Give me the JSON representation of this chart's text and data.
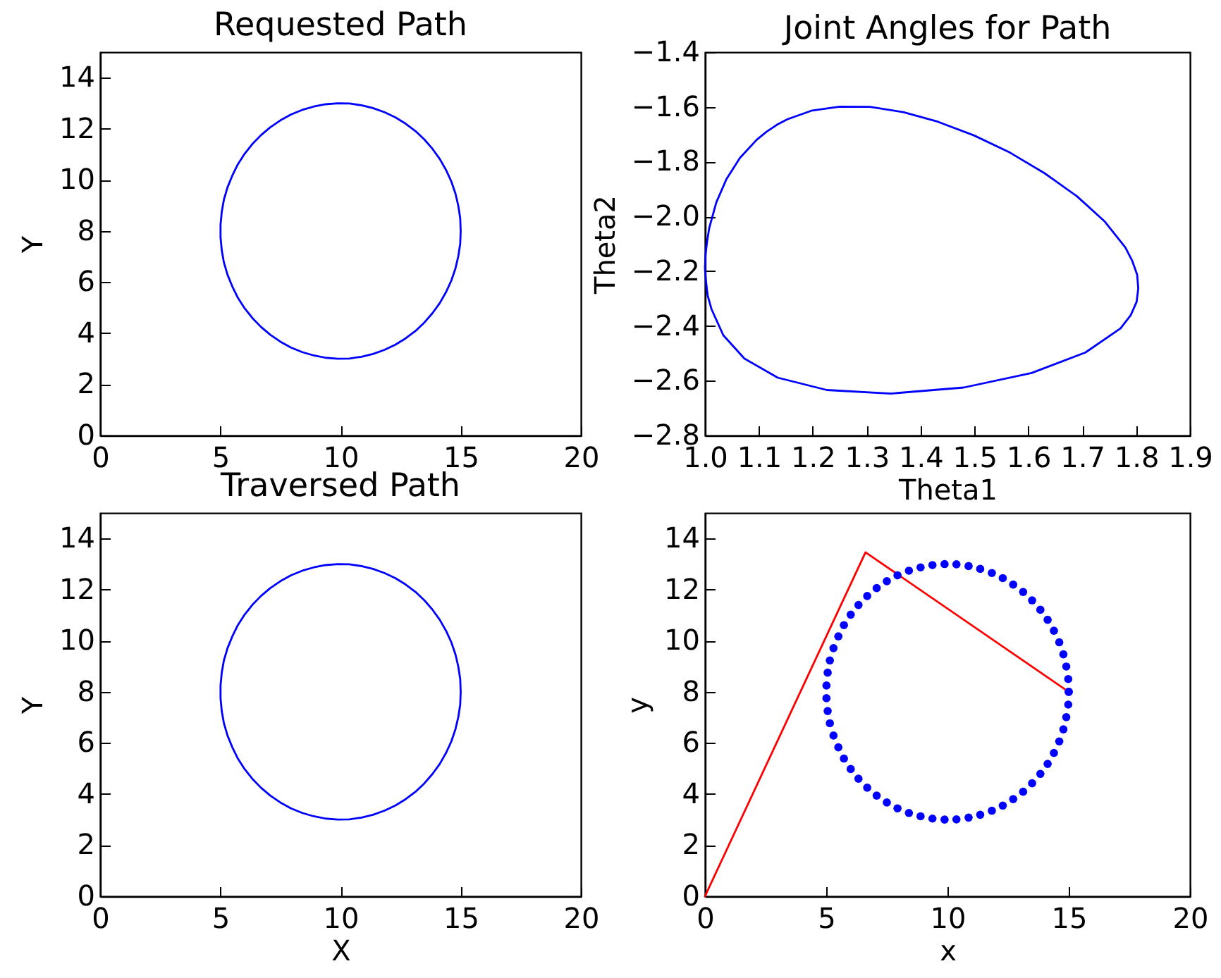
{
  "chart_data": [
    {
      "type": "line",
      "title": "Requested Path",
      "ylabel": "Y",
      "x": [
        15,
        14.98,
        14.9,
        14.78,
        14.61,
        14.39,
        14.13,
        13.83,
        13.49,
        13.12,
        12.71,
        12.28,
        11.83,
        11.35,
        10.87,
        10.37,
        9.88,
        9.38,
        8.89,
        8.41,
        7.94,
        7.5,
        7.08,
        6.69,
        6.33,
        6.01,
        5.73,
        5.5,
        5.3,
        5.15,
        5.06,
        5.01,
        5.01,
        5.06,
        5.15,
        5.3,
        5.5,
        5.73,
        6.01,
        6.33,
        6.69,
        7.08,
        7.5,
        7.94,
        8.41,
        8.89,
        9.38,
        9.88,
        10.37,
        10.87,
        11.35,
        11.83,
        12.28,
        12.71,
        13.12,
        13.49,
        13.83,
        14.13,
        14.39,
        14.61,
        14.78,
        14.9,
        14.98,
        15,
        14.98
      ],
      "values": [
        8,
        8.5,
        8.99,
        9.47,
        9.94,
        10.39,
        10.82,
        11.21,
        11.58,
        11.91,
        12.2,
        12.45,
        12.65,
        12.81,
        12.92,
        12.99,
        13,
        12.96,
        12.87,
        12.74,
        12.56,
        12.33,
        12.06,
        11.75,
        11.4,
        11.02,
        10.61,
        10.17,
        9.71,
        9.23,
        8.75,
        8.25,
        7.75,
        7.25,
        6.77,
        6.29,
        5.83,
        5.39,
        4.98,
        4.6,
        4.25,
        3.94,
        3.67,
        3.44,
        3.26,
        3.13,
        3.04,
        3,
        3.01,
        3.08,
        3.19,
        3.35,
        3.55,
        3.8,
        4.09,
        4.42,
        4.79,
        5.18,
        5.61,
        6.06,
        6.53,
        7.01,
        7.5,
        8,
        8.5
      ],
      "color": "#0000ff",
      "xlim": [
        0,
        20
      ],
      "xticks": [
        0,
        5,
        10,
        15,
        20
      ],
      "ylim": [
        0,
        15
      ],
      "yticks": [
        0,
        2,
        4,
        6,
        8,
        10,
        12,
        14
      ]
    },
    {
      "type": "line",
      "title": "Joint Angles for Path",
      "xlabel": "Theta1",
      "ylabel": "Theta2",
      "x": [
        1.114,
        1.133,
        1.153,
        1.199,
        1.25,
        1.306,
        1.368,
        1.432,
        1.499,
        1.566,
        1.63,
        1.69,
        1.741,
        1.78,
        1.793,
        1.802,
        1.804,
        1.801,
        1.79,
        1.771,
        1.706,
        1.606,
        1.48,
        1.345,
        1.226,
        1.135,
        1.073,
        1.034,
        1.012,
        1.005,
        1.002,
        1,
        1.001,
        1.004,
        1.008,
        1.021,
        1.04,
        1.065,
        1.096,
        1.114,
        1.133
      ],
      "values": [
        -1.691,
        -1.666,
        -1.645,
        -1.613,
        -1.599,
        -1.6,
        -1.619,
        -1.654,
        -1.704,
        -1.767,
        -1.842,
        -1.926,
        -2.017,
        -2.113,
        -2.163,
        -2.213,
        -2.263,
        -2.312,
        -2.361,
        -2.409,
        -2.497,
        -2.572,
        -2.625,
        -2.647,
        -2.634,
        -2.589,
        -2.519,
        -2.434,
        -2.338,
        -2.289,
        -2.239,
        -2.189,
        -2.14,
        -2.09,
        -2.042,
        -1.949,
        -1.863,
        -1.786,
        -1.72,
        -1.691,
        -1.666
      ],
      "color": "#0000ff",
      "xlim": [
        1,
        1.9
      ],
      "xticks": [
        {
          "value": 1,
          "label": "1.0"
        },
        1.1,
        1.2,
        1.3,
        1.4,
        1.5,
        1.6,
        1.7,
        1.8,
        1.9
      ],
      "ylim": [
        -2.8,
        -1.4
      ],
      "yticks": [
        {
          "value": -2.8,
          "label": "−2.8"
        },
        {
          "value": -2.6,
          "label": "−2.6"
        },
        {
          "value": -2.4,
          "label": "−2.4"
        },
        {
          "value": -2.2,
          "label": "−2.2"
        },
        {
          "value": -2,
          "label": "−2.0"
        },
        {
          "value": -1.8,
          "label": "−1.8"
        },
        {
          "value": -1.6,
          "label": "−1.6"
        },
        {
          "value": -1.4,
          "label": "−1.4"
        }
      ]
    },
    {
      "type": "line",
      "title": "Traversed Path",
      "xlabel": "X",
      "ylabel": "Y",
      "x": [
        15,
        14.98,
        14.9,
        14.78,
        14.61,
        14.39,
        14.13,
        13.83,
        13.49,
        13.12,
        12.71,
        12.28,
        11.83,
        11.35,
        10.87,
        10.37,
        9.88,
        9.38,
        8.89,
        8.41,
        7.94,
        7.5,
        7.08,
        6.69,
        6.33,
        6.01,
        5.73,
        5.5,
        5.3,
        5.15,
        5.06,
        5.01,
        5.01,
        5.06,
        5.15,
        5.3,
        5.5,
        5.73,
        6.01,
        6.33,
        6.69,
        7.08,
        7.5,
        7.94,
        8.41,
        8.89,
        9.38,
        9.88,
        10.37,
        10.87,
        11.35,
        11.83,
        12.28,
        12.71,
        13.12,
        13.49,
        13.83,
        14.13,
        14.39,
        14.61,
        14.78,
        14.9,
        14.98,
        15,
        14.98
      ],
      "values": [
        8,
        8.5,
        8.99,
        9.47,
        9.94,
        10.39,
        10.82,
        11.21,
        11.58,
        11.91,
        12.2,
        12.45,
        12.65,
        12.81,
        12.92,
        12.99,
        13,
        12.96,
        12.87,
        12.74,
        12.56,
        12.33,
        12.06,
        11.75,
        11.4,
        11.02,
        10.61,
        10.17,
        9.71,
        9.23,
        8.75,
        8.25,
        7.75,
        7.25,
        6.77,
        6.29,
        5.83,
        5.39,
        4.98,
        4.6,
        4.25,
        3.94,
        3.67,
        3.44,
        3.26,
        3.13,
        3.04,
        3,
        3.01,
        3.08,
        3.19,
        3.35,
        3.55,
        3.8,
        4.09,
        4.42,
        4.79,
        5.18,
        5.61,
        6.06,
        6.53,
        7.01,
        7.5,
        8,
        8.5
      ],
      "color": "#0000ff",
      "xlim": [
        0,
        20
      ],
      "xticks": [
        0,
        5,
        10,
        15,
        20
      ],
      "ylim": [
        0,
        15
      ],
      "yticks": [
        0,
        2,
        4,
        6,
        8,
        10,
        12,
        14
      ]
    },
    {
      "type": "scatter",
      "xlabel": "x",
      "ylabel": "y",
      "series": [
        {
          "type": "line",
          "color": "#ff0000",
          "x": [
            0,
            6.62,
            15
          ],
          "values": [
            0,
            13.46,
            8
          ]
        },
        {
          "type": "scatter",
          "color": "#0000ff",
          "marker": "circle",
          "x": [
            15,
            14.98,
            14.9,
            14.78,
            14.61,
            14.39,
            14.13,
            13.83,
            13.49,
            13.12,
            12.71,
            12.28,
            11.83,
            11.35,
            10.87,
            10.37,
            9.88,
            9.38,
            8.89,
            8.41,
            7.94,
            7.5,
            7.08,
            6.69,
            6.33,
            6.01,
            5.73,
            5.5,
            5.3,
            5.15,
            5.06,
            5.01,
            5.01,
            5.06,
            5.15,
            5.3,
            5.5,
            5.73,
            6.01,
            6.33,
            6.69,
            7.08,
            7.5,
            7.94,
            8.41,
            8.89,
            9.38,
            9.88,
            10.37,
            10.87,
            11.35,
            11.83,
            12.28,
            12.71,
            13.12,
            13.49,
            13.83,
            14.13,
            14.39,
            14.61,
            14.78,
            14.9,
            14.98,
            15
          ],
          "values": [
            8,
            8.5,
            8.99,
            9.47,
            9.94,
            10.39,
            10.82,
            11.21,
            11.58,
            11.91,
            12.2,
            12.45,
            12.65,
            12.81,
            12.92,
            12.99,
            13,
            12.96,
            12.87,
            12.74,
            12.56,
            12.33,
            12.06,
            11.75,
            11.4,
            11.02,
            10.61,
            10.17,
            9.71,
            9.23,
            8.75,
            8.25,
            7.75,
            7.25,
            6.77,
            6.29,
            5.83,
            5.39,
            4.98,
            4.6,
            4.25,
            3.94,
            3.67,
            3.44,
            3.26,
            3.13,
            3.04,
            3,
            3.01,
            3.08,
            3.19,
            3.35,
            3.55,
            3.8,
            4.09,
            4.42,
            4.79,
            5.18,
            5.61,
            6.06,
            6.53,
            7.01,
            7.5,
            8
          ]
        }
      ],
      "xlim": [
        0,
        20
      ],
      "xticks": [
        0,
        5,
        10,
        15,
        20
      ],
      "ylim": [
        0,
        15
      ],
      "yticks": [
        0,
        2,
        4,
        6,
        8,
        10,
        12,
        14
      ]
    }
  ]
}
